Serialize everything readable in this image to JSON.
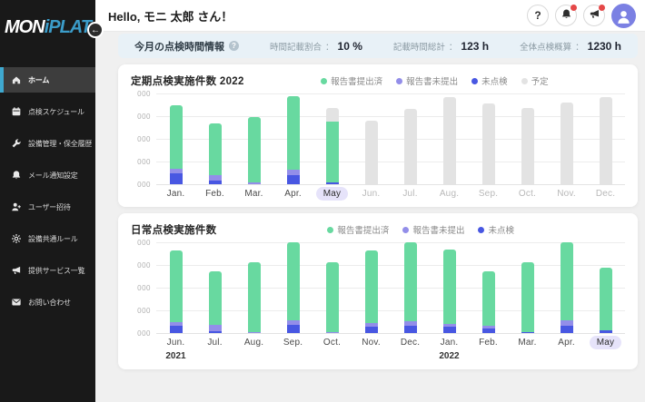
{
  "brand": {
    "mon": "MON",
    "i": "i",
    "plat": "PLAT"
  },
  "sidebar": {
    "collapse_icon": "arrow-left-icon",
    "items": [
      {
        "id": "home",
        "icon": "home-icon",
        "label": "ホーム",
        "active": true
      },
      {
        "id": "schedule",
        "icon": "calendar-icon",
        "label": "点検スケジュール",
        "active": false
      },
      {
        "id": "equipment",
        "icon": "wrench-icon",
        "label": "設備管理・保全履歴",
        "active": false
      },
      {
        "id": "mail-notify",
        "icon": "bell-icon",
        "label": "メール通知設定",
        "active": false
      },
      {
        "id": "invite",
        "icon": "user-plus-icon",
        "label": "ユーザー招待",
        "active": false
      },
      {
        "id": "rules",
        "icon": "gear-icon",
        "label": "設備共通ルール",
        "active": false
      },
      {
        "id": "services",
        "icon": "megaphone-icon",
        "label": "提供サービス一覧",
        "active": false
      },
      {
        "id": "contact",
        "icon": "mail-icon",
        "label": "お問い合わせ",
        "active": false
      }
    ]
  },
  "header": {
    "greeting": "Hello, モニ 太郎 さん！",
    "icons": [
      "help-icon",
      "notifications-icon",
      "announcements-icon",
      "avatar"
    ],
    "help_glyph": "?"
  },
  "stats": {
    "title": "今月の点検時間情報",
    "info_glyph": "?",
    "metrics": [
      {
        "label": "時間記載割合",
        "sep": "：",
        "value": "10 %"
      },
      {
        "label": "記載時間総計",
        "sep": "：",
        "value": "123 h"
      },
      {
        "label": "全体点検概算",
        "sep": "：",
        "value": "1230 h"
      }
    ]
  },
  "colors": {
    "accent_blue": "#3fa9d0",
    "logo_blue": "#3b9cc9",
    "green": "#68d9a0",
    "purple": "#938ee9",
    "blue": "#4857e2",
    "gray_bar": "#e3e3e3",
    "avatar_purple": "#7b80e3",
    "badge_red": "#e54848",
    "stats_bg": "#e8f1f7",
    "highlight_pill": "#e6e3fa",
    "sidebar_bg": "#191919"
  },
  "chart_data": [
    {
      "type": "bar",
      "stacked": true,
      "title": "定期点検実施件数 2022",
      "value_unit": "percent_of_axis_max",
      "y_tick_labels": [
        "000",
        "000",
        "000",
        "000",
        "000"
      ],
      "ylim": [
        0,
        100
      ],
      "grid": true,
      "legend_position": "top-center",
      "categories": [
        "Jan.",
        "Feb.",
        "Mar.",
        "Apr.",
        "May",
        "Jun.",
        "Jul.",
        "Aug.",
        "Sep.",
        "Oct.",
        "Nov.",
        "Dec."
      ],
      "highlight_category": "May",
      "muted": [
        false,
        false,
        false,
        false,
        false,
        true,
        true,
        true,
        true,
        true,
        true,
        true
      ],
      "legend": [
        {
          "name": "報告書提出済",
          "color": "#68d9a0"
        },
        {
          "name": "報告書未提出",
          "color": "#938ee9"
        },
        {
          "name": "未点検",
          "color": "#4857e2"
        },
        {
          "name": "予定",
          "color": "#e3e3e3"
        }
      ],
      "series": [
        {
          "name": "未点検",
          "color": "#4857e2",
          "values": [
            12,
            4,
            0,
            10,
            2,
            0,
            0,
            0,
            0,
            0,
            0,
            0
          ]
        },
        {
          "name": "報告書未提出",
          "color": "#938ee9",
          "values": [
            5,
            6,
            2,
            6,
            0,
            0,
            0,
            0,
            0,
            0,
            0,
            0
          ]
        },
        {
          "name": "報告書提出済",
          "color": "#68d9a0",
          "values": [
            70,
            57,
            72,
            81,
            67,
            0,
            0,
            0,
            0,
            0,
            0,
            0
          ]
        },
        {
          "name": "予定",
          "color": "#e3e3e3",
          "values": [
            0,
            0,
            0,
            0,
            15,
            70,
            83,
            96,
            89,
            84,
            90,
            96
          ]
        }
      ]
    },
    {
      "type": "bar",
      "stacked": true,
      "title": "日常点検実施件数",
      "value_unit": "percent_of_axis_max",
      "y_tick_labels": [
        "000",
        "000",
        "000",
        "000",
        "000"
      ],
      "ylim": [
        0,
        100
      ],
      "grid": true,
      "legend_position": "top-center",
      "categories": [
        "Jun.",
        "Jul.",
        "Aug.",
        "Sep.",
        "Oct.",
        "Nov.",
        "Dec.",
        "Jan.",
        "Feb.",
        "Mar.",
        "Apr.",
        "May"
      ],
      "year_labels": [
        "2021",
        "",
        "",
        "",
        "",
        "",
        "",
        "2022",
        "",
        "",
        "",
        ""
      ],
      "highlight_category": "May",
      "muted": [
        false,
        false,
        false,
        false,
        false,
        false,
        false,
        false,
        false,
        false,
        false,
        false
      ],
      "legend": [
        {
          "name": "報告書提出済",
          "color": "#68d9a0"
        },
        {
          "name": "報告書未提出",
          "color": "#938ee9"
        },
        {
          "name": "未点検",
          "color": "#4857e2"
        }
      ],
      "series": [
        {
          "name": "未点検",
          "color": "#4857e2",
          "values": [
            8,
            2,
            0,
            9,
            0,
            7,
            8,
            7,
            5,
            1,
            8,
            3
          ]
        },
        {
          "name": "報告書未提出",
          "color": "#938ee9",
          "values": [
            4,
            7,
            1,
            5,
            1,
            4,
            5,
            3,
            3,
            0,
            6,
            0
          ]
        },
        {
          "name": "報告書提出済",
          "color": "#68d9a0",
          "values": [
            79,
            59,
            77,
            86,
            77,
            80,
            87,
            82,
            60,
            77,
            86,
            69
          ]
        }
      ]
    }
  ]
}
